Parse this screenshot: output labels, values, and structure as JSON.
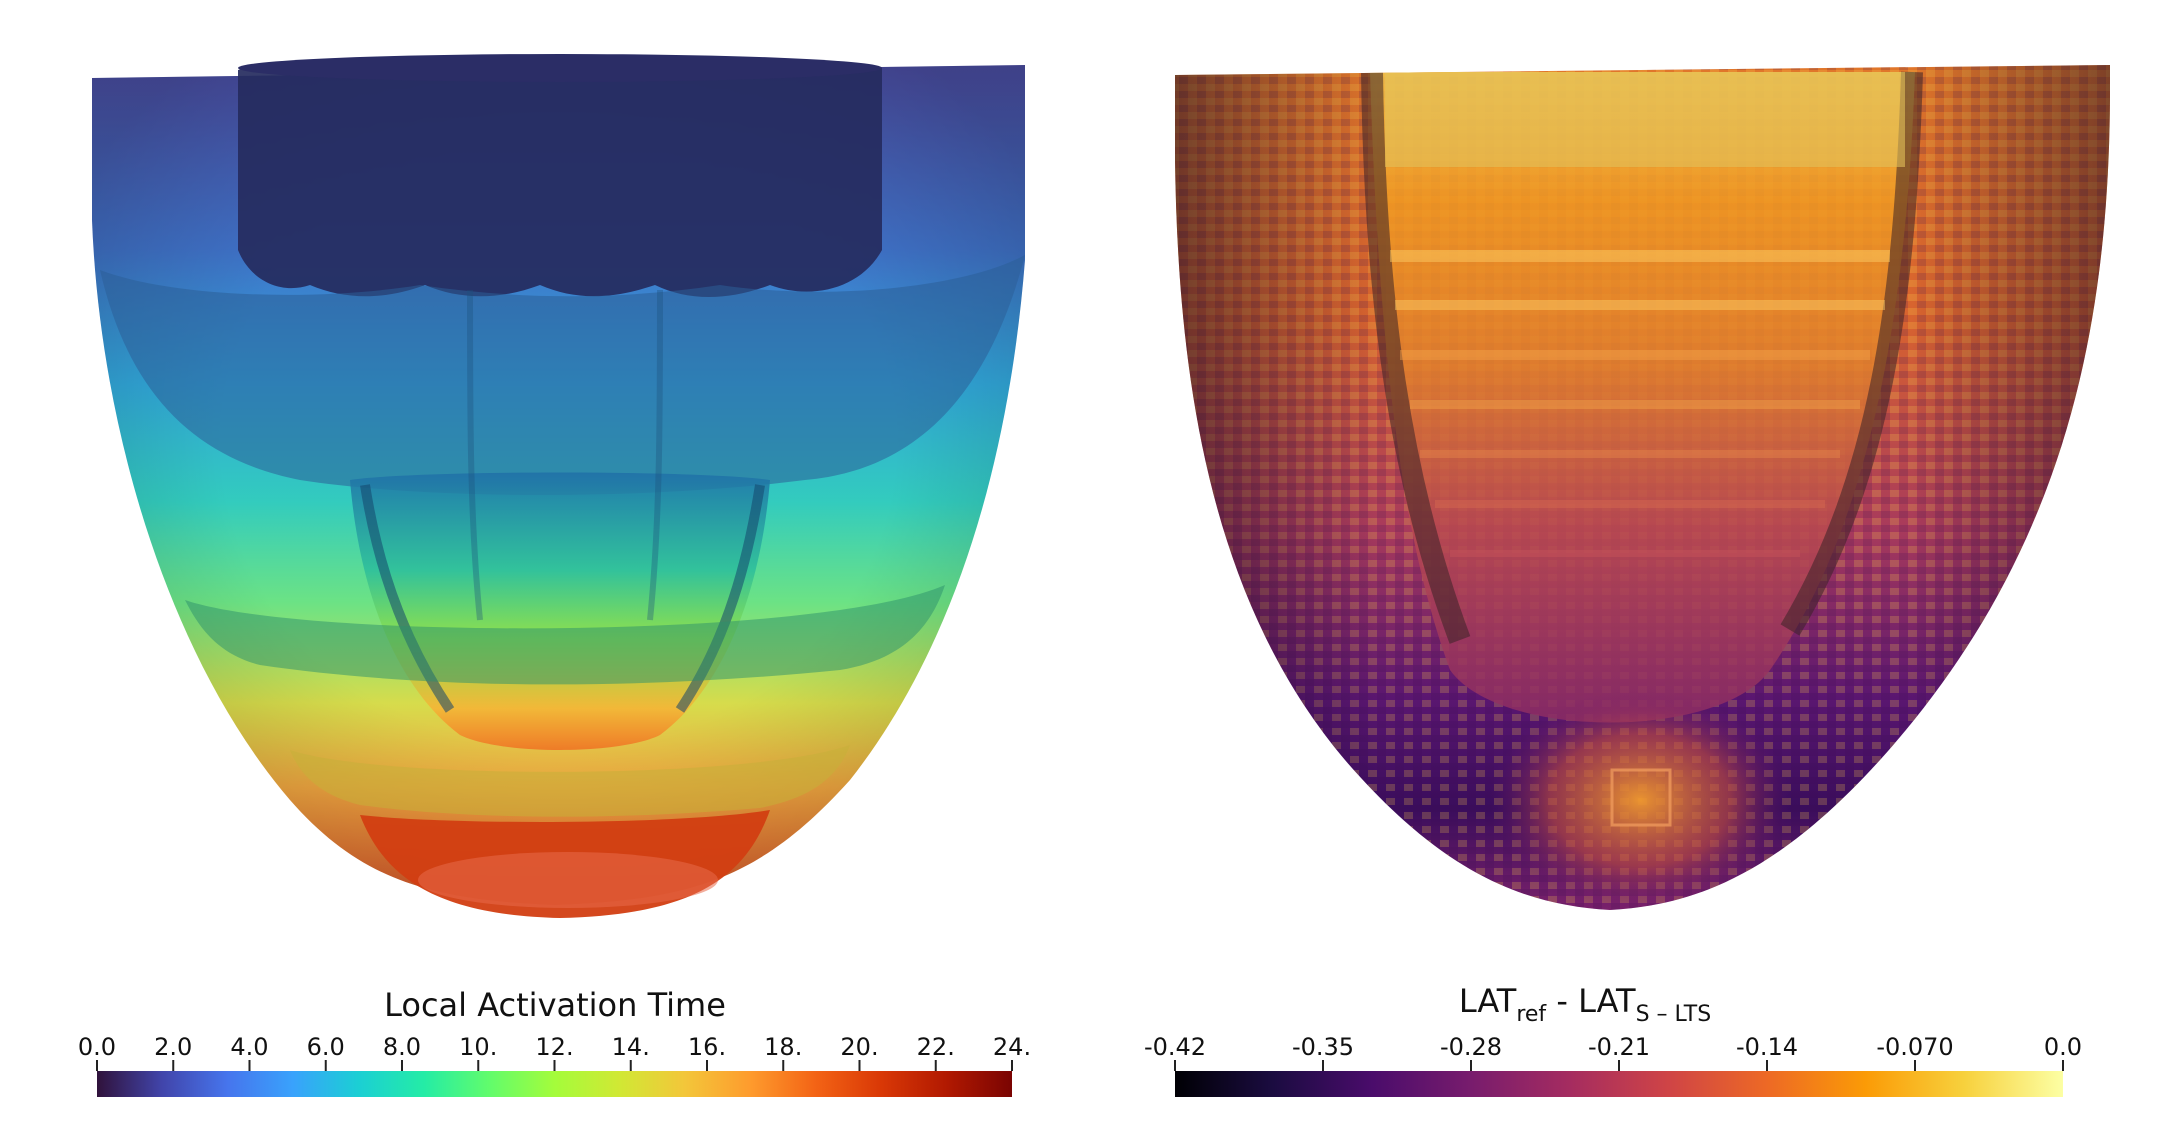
{
  "left_panel": {
    "colorbar": {
      "title": "Local Activation Time",
      "ticks": [
        "0.0",
        "2.0",
        "4.0",
        "6.0",
        "8.0",
        "10.",
        "12.",
        "14.",
        "16.",
        "18.",
        "20.",
        "22.",
        "24."
      ],
      "colormap": [
        "#30123b",
        "#4145ab",
        "#4675ed",
        "#39a2fc",
        "#1bcfd4",
        "#24eca6",
        "#61fc6c",
        "#a4fc3b",
        "#d1e834",
        "#f3c63a",
        "#fe9b2d",
        "#f36315",
        "#d93806",
        "#b11901",
        "#7a0402"
      ]
    }
  },
  "right_panel": {
    "colorbar": {
      "title_main": "LAT",
      "title_sub1": "ref",
      "title_mid": " - LAT",
      "title_sub2": "S – LTS",
      "ticks": [
        "-0.42",
        "-0.35",
        "-0.28",
        "-0.21",
        "-0.14",
        "-0.070",
        "0.0"
      ],
      "colormap": [
        "#000004",
        "#1b0c41",
        "#4a0c6b",
        "#781c6d",
        "#a52c60",
        "#cf4446",
        "#ed6925",
        "#fb9b06",
        "#f7d13d",
        "#fcffa4"
      ]
    }
  }
}
